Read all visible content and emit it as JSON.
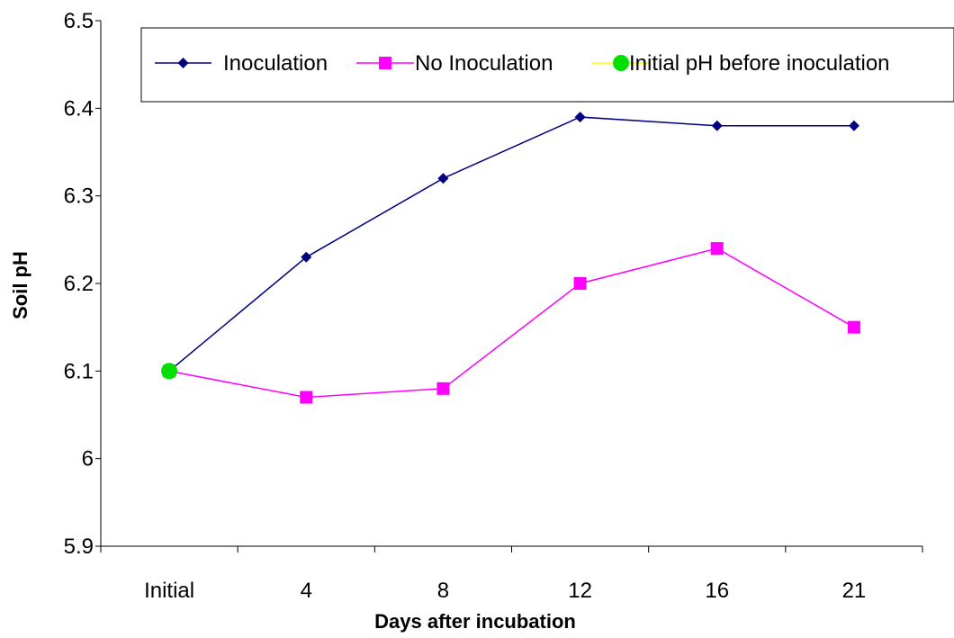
{
  "chart_data": {
    "type": "line",
    "categories": [
      "Initial",
      "4",
      "8",
      "12",
      "16",
      "21"
    ],
    "xlabel": "Days after incubation",
    "ylabel": "Soil pH",
    "ylim": [
      5.9,
      6.5
    ],
    "yticks": [
      "5.9",
      "6",
      "6.1",
      "6.2",
      "6.3",
      "6.4",
      "6.5"
    ],
    "grid": false,
    "legend_position": "top-right",
    "series": [
      {
        "name": "Inoculation",
        "values": [
          6.1,
          6.23,
          6.32,
          6.39,
          6.38,
          6.38
        ],
        "color": "#000080",
        "marker": "diamond"
      },
      {
        "name": "No Inoculation",
        "values": [
          6.1,
          6.07,
          6.08,
          6.2,
          6.24,
          6.15
        ],
        "color": "#ff00ff",
        "marker": "square"
      },
      {
        "name": "Initial pH before inoculation",
        "values": [
          6.1,
          null,
          null,
          null,
          null,
          null
        ],
        "color": "#00e000",
        "line_color": "#ffff00",
        "marker": "circle"
      }
    ]
  }
}
